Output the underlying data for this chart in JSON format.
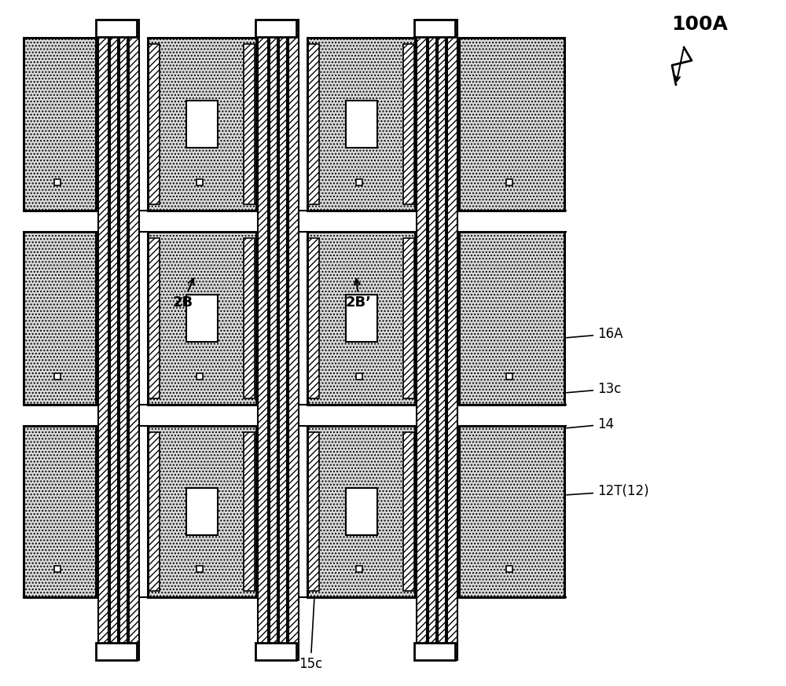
{
  "fig_width": 10.0,
  "fig_height": 8.73,
  "bg_color": "#ffffff",
  "label_100A": "100A",
  "label_16A": "16A",
  "label_13c": "13c",
  "label_14": "14",
  "label_12T": "12T(12)",
  "label_15c": "15c",
  "label_2B": "2B",
  "label_2Bp": "2B’",
  "hatch_color": "#000000",
  "dot_fill": "#e8e8e8",
  "line_color": "#000000"
}
